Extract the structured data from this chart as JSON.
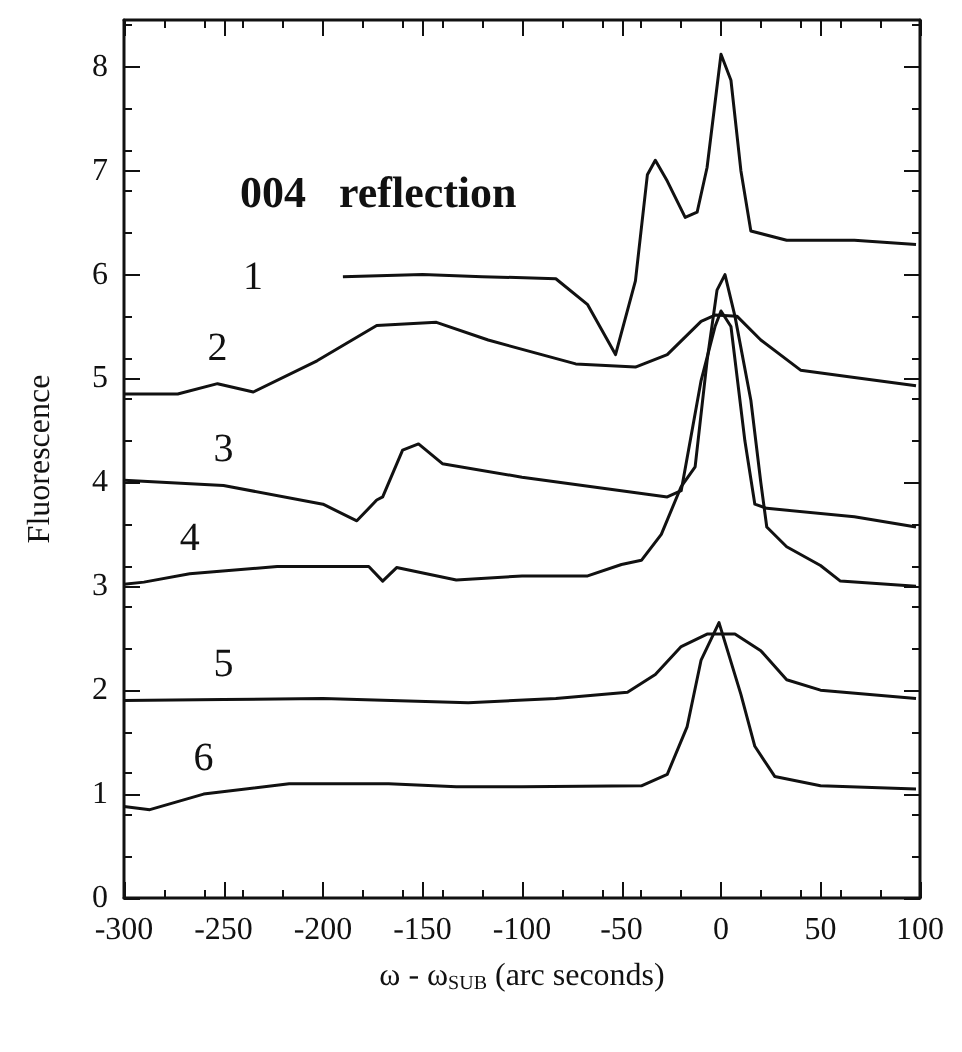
{
  "chart_data": {
    "type": "line",
    "xlabel": "ω - ω$_{SUB}$ (arc seconds)",
    "ylabel": "Fluorescence",
    "annotations": [
      "004   reflection"
    ],
    "xlim": [
      -300,
      100
    ],
    "xticks": [
      -300,
      -250,
      -200,
      -150,
      -100,
      -50,
      0,
      50,
      100
    ],
    "ylim": [
      0,
      8.45
    ],
    "yticks": [
      0,
      1,
      2,
      3,
      4,
      5,
      6,
      7,
      8
    ],
    "grid": false,
    "legend": false,
    "marker": "none",
    "line_style": "solid",
    "series": [
      {
        "name": "1",
        "color": "#111111",
        "x": [
          -190,
          -150,
          -120,
          -83,
          -67,
          -53,
          -43,
          -37,
          -33,
          -27,
          -18,
          -12,
          -7,
          0,
          5,
          10,
          15,
          33,
          67,
          98
        ],
        "values": [
          5.98,
          6.0,
          5.98,
          5.96,
          5.71,
          5.23,
          5.94,
          6.96,
          7.1,
          6.9,
          6.55,
          6.6,
          7.03,
          8.12,
          7.87,
          7.0,
          6.42,
          6.33,
          6.33,
          6.29
        ]
      },
      {
        "name": "2",
        "color": "#111111",
        "x": [
          -300,
          -273,
          -253,
          -235,
          -203,
          -173,
          -143,
          -117,
          -73,
          -43,
          -27,
          -10,
          -3,
          8,
          20,
          40,
          67,
          98
        ],
        "values": [
          4.85,
          4.85,
          4.95,
          4.87,
          5.17,
          5.51,
          5.54,
          5.37,
          5.14,
          5.11,
          5.23,
          5.55,
          5.61,
          5.6,
          5.37,
          5.08,
          5.01,
          4.93
        ]
      },
      {
        "name": "3",
        "color": "#111111",
        "x": [
          -300,
          -250,
          -200,
          -183,
          -173,
          -170,
          -160,
          -152,
          -140,
          -100,
          -27,
          -20,
          -10,
          -3,
          0,
          5,
          12,
          17,
          23,
          67,
          98
        ],
        "values": [
          4.02,
          3.97,
          3.79,
          3.63,
          3.83,
          3.86,
          4.31,
          4.37,
          4.18,
          4.05,
          3.86,
          3.92,
          4.98,
          5.5,
          5.65,
          5.5,
          4.4,
          3.79,
          3.75,
          3.67,
          3.57
        ]
      },
      {
        "name": "4",
        "color": "#111111",
        "x": [
          -300,
          -290,
          -267,
          -223,
          -177,
          -170,
          -163,
          -133,
          -100,
          -67,
          -50,
          -40,
          -30,
          -20,
          -13,
          -7,
          -2,
          2,
          7,
          15,
          20,
          23,
          33,
          50,
          60,
          98
        ],
        "values": [
          3.02,
          3.04,
          3.12,
          3.19,
          3.19,
          3.05,
          3.18,
          3.06,
          3.1,
          3.1,
          3.21,
          3.25,
          3.5,
          3.96,
          4.15,
          5.17,
          5.85,
          6.0,
          5.6,
          4.79,
          4.0,
          3.57,
          3.38,
          3.2,
          3.05,
          3.0
        ]
      },
      {
        "name": "5",
        "color": "#111111",
        "x": [
          -300,
          -250,
          -200,
          -127,
          -83,
          -47,
          -33,
          -20,
          -7,
          7,
          20,
          33,
          50,
          98
        ],
        "values": [
          1.9,
          1.91,
          1.92,
          1.88,
          1.92,
          1.98,
          2.15,
          2.42,
          2.54,
          2.54,
          2.38,
          2.1,
          2.0,
          1.92
        ]
      },
      {
        "name": "6",
        "color": "#111111",
        "x": [
          -300,
          -287,
          -260,
          -217,
          -167,
          -133,
          -100,
          -40,
          -27,
          -17,
          -10,
          -1,
          10,
          17,
          27,
          50,
          98
        ],
        "values": [
          0.88,
          0.85,
          1.0,
          1.1,
          1.1,
          1.07,
          1.07,
          1.08,
          1.19,
          1.65,
          2.29,
          2.65,
          1.96,
          1.46,
          1.17,
          1.08,
          1.05
        ]
      }
    ]
  }
}
